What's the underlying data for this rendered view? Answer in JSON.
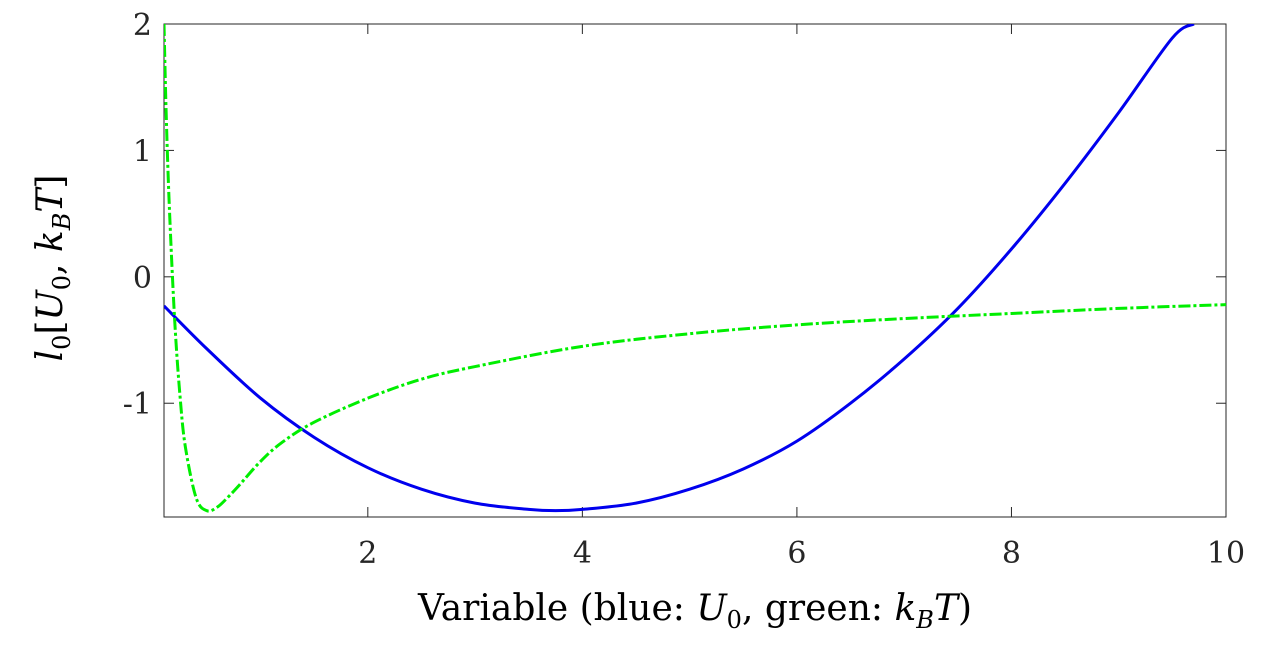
{
  "chart_data": {
    "type": "line",
    "xlabel": {
      "prefix": "Variable (blue: ",
      "blue_var": "U",
      "blue_sub": "0",
      "middle": ", green: ",
      "green_var": "k",
      "green_sub": "B",
      "green_var2": "T",
      "suffix": ")"
    },
    "ylabel": {
      "var": "l",
      "sub": "0",
      "open": "[",
      "v1": "U",
      "v1_sub": "0",
      "sep": ", ",
      "v2": "k",
      "v2_sub": "B",
      "v3": "T",
      "close": "]"
    },
    "xlim": [
      0.1,
      10
    ],
    "ylim": [
      -1.9,
      2
    ],
    "x_ticks": [
      2,
      4,
      6,
      8,
      10
    ],
    "x_tick_labels": [
      "2",
      "4",
      "6",
      "8",
      "10"
    ],
    "y_ticks": [
      -1,
      0,
      1,
      2
    ],
    "y_tick_labels": [
      "-1",
      "0",
      "1",
      "2"
    ],
    "grid": false,
    "series": [
      {
        "color": "#0000ee",
        "style": "solid",
        "x": [
          0.1,
          0.5,
          1.0,
          1.5,
          2.0,
          2.5,
          3.0,
          3.5,
          3.75,
          4.0,
          4.5,
          5.0,
          5.5,
          6.0,
          6.5,
          7.0,
          7.5,
          8.0,
          8.5,
          9.0,
          9.5,
          9.7
        ],
        "y": [
          -0.23,
          -0.57,
          -0.96,
          -1.27,
          -1.51,
          -1.68,
          -1.79,
          -1.84,
          -1.85,
          -1.84,
          -1.79,
          -1.68,
          -1.52,
          -1.3,
          -1.0,
          -0.65,
          -0.25,
          0.22,
          0.74,
          1.3,
          1.89,
          2.0
        ]
      },
      {
        "color": "#00ee00",
        "style": "dashdot",
        "x": [
          0.1,
          0.12,
          0.15,
          0.2,
          0.25,
          0.3,
          0.4,
          0.5,
          0.6,
          0.7,
          0.8,
          1.0,
          1.2,
          1.5,
          2.0,
          2.5,
          3.0,
          4.0,
          5.0,
          6.0,
          7.0,
          8.0,
          9.0,
          10.0
        ],
        "y": [
          2.0,
          1.3,
          0.55,
          -0.35,
          -0.95,
          -1.35,
          -1.75,
          -1.85,
          -1.82,
          -1.74,
          -1.65,
          -1.46,
          -1.31,
          -1.15,
          -0.96,
          -0.81,
          -0.71,
          -0.55,
          -0.45,
          -0.38,
          -0.33,
          -0.29,
          -0.25,
          -0.22
        ]
      }
    ]
  }
}
